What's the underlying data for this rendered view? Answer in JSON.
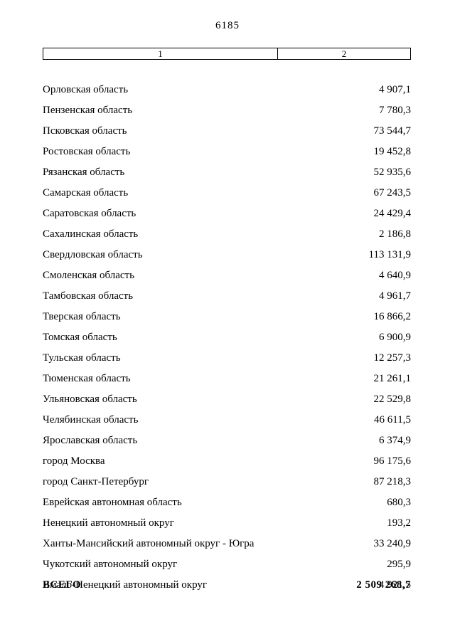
{
  "page": {
    "number": "6185"
  },
  "table": {
    "header": {
      "col1": "1",
      "col2": "2"
    },
    "rows": [
      {
        "name": "Орловская область",
        "value": "4 907,1"
      },
      {
        "name": "Пензенская область",
        "value": "7 780,3"
      },
      {
        "name": "Псковская область",
        "value": "73 544,7"
      },
      {
        "name": "Ростовская область",
        "value": "19 452,8"
      },
      {
        "name": "Рязанская область",
        "value": "52 935,6"
      },
      {
        "name": "Самарская область",
        "value": "67 243,5"
      },
      {
        "name": "Саратовская область",
        "value": "24 429,4"
      },
      {
        "name": "Сахалинская область",
        "value": "2 186,8"
      },
      {
        "name": "Свердловская область",
        "value": "113 131,9"
      },
      {
        "name": "Смоленская область",
        "value": "4 640,9"
      },
      {
        "name": "Тамбовская область",
        "value": "4 961,7"
      },
      {
        "name": "Тверская область",
        "value": "16 866,2"
      },
      {
        "name": "Томская область",
        "value": "6 900,9"
      },
      {
        "name": "Тульская область",
        "value": "12 257,3"
      },
      {
        "name": "Тюменская область",
        "value": "21 261,1"
      },
      {
        "name": "Ульяновская область",
        "value": "22 529,8"
      },
      {
        "name": "Челябинская область",
        "value": "46 611,5"
      },
      {
        "name": "Ярославская область",
        "value": "6 374,9"
      },
      {
        "name": "город Москва",
        "value": "96 175,6"
      },
      {
        "name": "город Санкт-Петербург",
        "value": "87 218,3"
      },
      {
        "name": "Еврейская автономная область",
        "value": "680,3"
      },
      {
        "name": "Ненецкий автономный округ",
        "value": "193,2"
      },
      {
        "name": "Ханты-Мансийский автономный округ - Югра",
        "value": "33 240,9"
      },
      {
        "name": "Чукотский автономный округ",
        "value": "295,9"
      },
      {
        "name": "Ямало-Ненецкий автономный округ",
        "value": "4 921,5"
      }
    ],
    "total": {
      "label": "ВСЕГО",
      "value": "2 509 268,7"
    }
  }
}
